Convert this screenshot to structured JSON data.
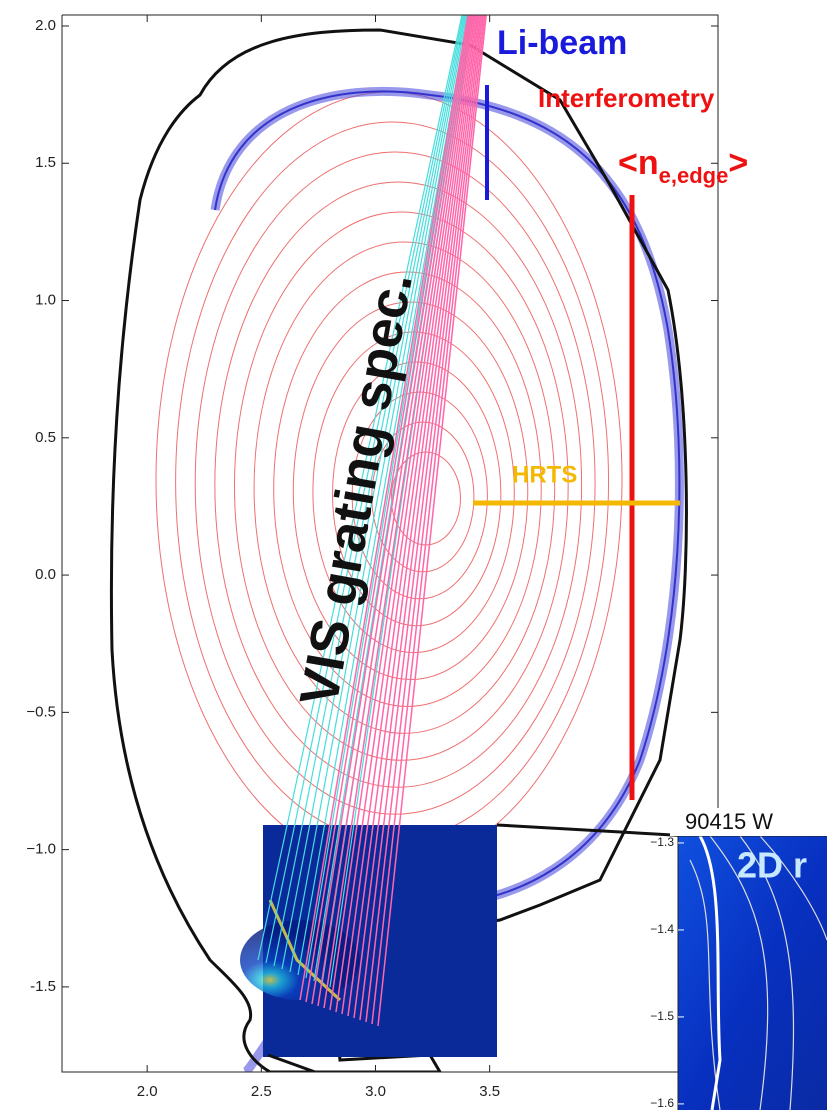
{
  "chart_data": [
    {
      "type": "contour",
      "xlim": [
        1.627,
        4.5
      ],
      "ylim": [
        -1.81,
        2.04
      ],
      "xticks": [
        {
          "value": 2.0,
          "label": "2.0"
        },
        2.5,
        {
          "value": 3.0,
          "label": "3.0"
        },
        3.5
      ],
      "yticks": [
        -1.5,
        {
          "value": -1.0,
          "label": "−1.0"
        },
        {
          "value": -0.5,
          "label": "−0.5"
        },
        {
          "value": 0.0,
          "label": "0.0"
        },
        0.5,
        {
          "value": 1.0,
          "label": "1.0"
        },
        1.5,
        {
          "value": 2.0,
          "label": "2.0"
        }
      ],
      "annotations": [
        {
          "text": "Li-beam",
          "color": "#1a1adc"
        },
        {
          "text": "Interferometry",
          "color": "#ee1111"
        },
        {
          "text": "<n",
          "subscript": "e,edge",
          "suffix": ">",
          "color": "#ee1111"
        },
        {
          "text": "HRTS",
          "color": "#f5b800"
        },
        {
          "text": "VIS grating spec.",
          "color": "#111111"
        }
      ]
    },
    {
      "type": "image",
      "title": "90415 W",
      "annotation": "2D r",
      "ylim": [
        -1.607,
        -1.292
      ],
      "yticks": [
        {
          "value": -1.3,
          "label": "−1.3"
        },
        {
          "value": -1.4,
          "label": "−1.4"
        },
        {
          "value": -1.5,
          "label": "−1.5"
        },
        {
          "value": -1.6,
          "label": "−1.6"
        }
      ]
    }
  ]
}
